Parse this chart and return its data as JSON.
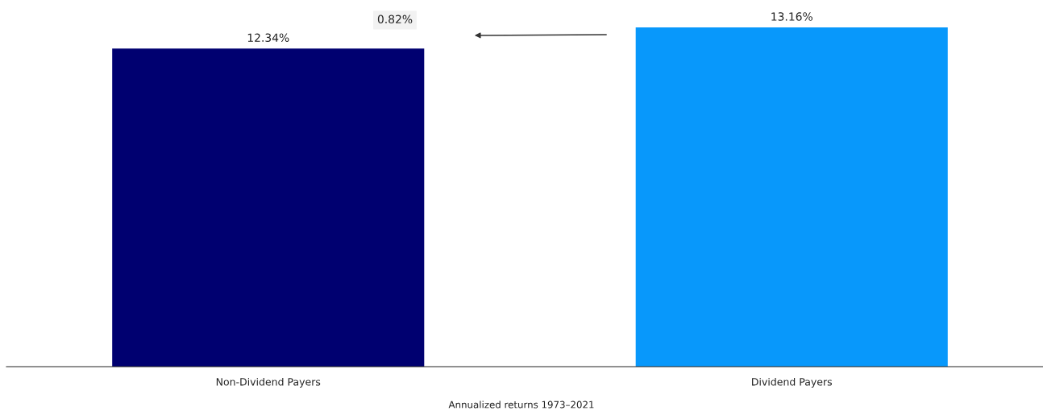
{
  "chart_data": {
    "type": "bar",
    "xlabel": "Annualized returns 1973–2021",
    "categories": [
      "Non-Dividend Payers",
      "Dividend Payers"
    ],
    "values": [
      12.34,
      13.16
    ],
    "colors": [
      "#000070",
      "#0898fb"
    ],
    "value_labels": [
      "12.34%",
      "13.16%"
    ],
    "tick_labels": "x",
    "grid": false,
    "legend": false,
    "annotations": [
      "0.82%"
    ]
  }
}
